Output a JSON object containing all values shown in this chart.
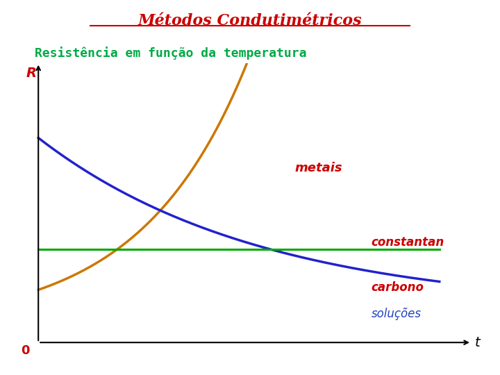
{
  "title": "Métodos Condutimétricos",
  "subtitle": "Resistência em função da temperatura",
  "title_color": "#cc0000",
  "subtitle_color": "#00aa44",
  "bg_color": "#ffffff",
  "xlabel": "t",
  "ylabel": "R",
  "ylabel_color": "#cc0000",
  "zero_label_color": "#cc0000",
  "line_metais_color": "#cc7700",
  "line_constantan_color": "#00aa00",
  "line_solucoes_color": "#2222cc",
  "label_metais": "metais",
  "label_constantan": "constantan",
  "label_carbono": "carbono",
  "label_solucoes": "soluções",
  "label_metais_color": "#cc0000",
  "label_constantan_color": "#cc0000",
  "label_carbono_color": "#cc0000",
  "label_solucoes_color": "#2244bb",
  "axis_color": "#000000"
}
